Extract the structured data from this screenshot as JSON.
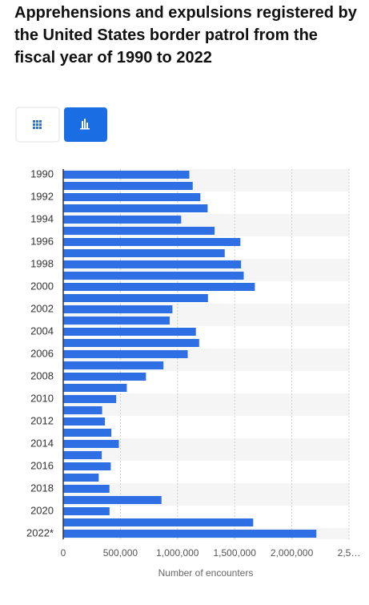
{
  "chart_data": {
    "type": "hbar",
    "title": "Apprehensions and expulsions registered by the United States border patrol from the fiscal year of 1990 to 2022",
    "categories": [
      "1990",
      null,
      "1992",
      null,
      "1994",
      null,
      "1996",
      null,
      "1998",
      null,
      "2000",
      null,
      "2002",
      null,
      "2004",
      null,
      "2006",
      null,
      "2008",
      null,
      "2010",
      null,
      "2012",
      null,
      "2014",
      null,
      "2016",
      null,
      "2018",
      null,
      "2020",
      null,
      "2022*"
    ],
    "values": [
      1103353,
      1132933,
      1199560,
      1263490,
      1031668,
      1324202,
      1549876,
      1412953,
      1555776,
      1579010,
      1676438,
      1266214,
      955310,
      931557,
      1160395,
      1189075,
      1089092,
      876704,
      723825,
      556041,
      463382,
      340252,
      364768,
      420789,
      486651,
      337117,
      415816,
      310531,
      404142,
      859501,
      405036,
      1662167,
      2214652
    ],
    "color": "#2e6fe3",
    "xlabel": "Number of encounters",
    "xlim": [
      0,
      2500000
    ],
    "xticks": [
      0,
      {
        "value": 500000,
        "label": "500,000"
      },
      {
        "value": 1000000,
        "label": "1,000,000"
      },
      {
        "value": 1500000,
        "label": "1,500,000"
      },
      {
        "value": 2000000,
        "label": "2,000,000"
      },
      {
        "value": 2500000,
        "label": "2,5…"
      }
    ],
    "grid": true
  }
}
